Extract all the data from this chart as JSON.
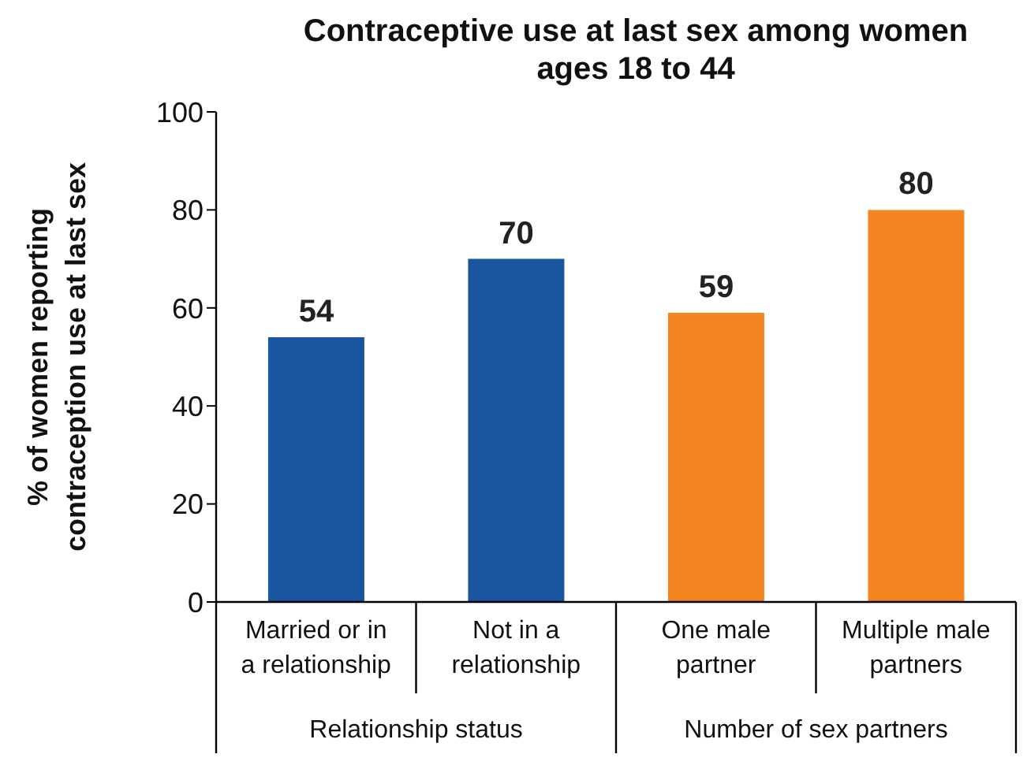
{
  "chart_data": {
    "type": "bar",
    "title": "Contraceptive use at last sex among women ages 18 to 44",
    "ylabel": "% of women reporting contraception use at last sex",
    "categories": [
      "Married or in a relationship",
      "Not in a relationship",
      "One male partner",
      "Multiple male partners"
    ],
    "values": [
      54,
      70,
      59,
      80
    ],
    "colors": [
      "#1a55a0",
      "#1a55a0",
      "#f3841f",
      "#f3841f"
    ],
    "ylim": [
      0,
      100
    ],
    "yticks": [
      0,
      20,
      40,
      60,
      80,
      100
    ],
    "data_labels": true,
    "grid": false,
    "legend": false,
    "annotations": [
      "Relationship status",
      "Number of sex partners"
    ]
  }
}
